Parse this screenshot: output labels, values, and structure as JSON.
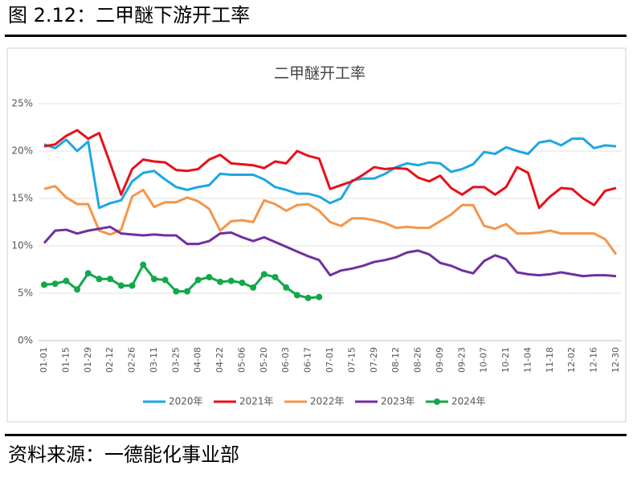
{
  "header": {
    "title": "图 2.12：二甲醚下游开工率"
  },
  "footer": "资料来源：一德能化事业部",
  "chart_data": {
    "type": "line",
    "title": "二甲醚开工率",
    "categories": [
      "01-01",
      null,
      "01-15",
      null,
      "01-29",
      null,
      "02-12",
      null,
      "02-26",
      null,
      "03-11",
      null,
      "03-25",
      null,
      "04-08",
      null,
      "04-22",
      null,
      "05-06",
      null,
      "05-20",
      null,
      "06-03",
      null,
      "06-17",
      null,
      "07-01",
      null,
      "07-15",
      null,
      "07-29",
      null,
      "08-12",
      null,
      "08-26",
      null,
      "09-09",
      null,
      "09-23",
      null,
      "10-07",
      null,
      "10-21",
      null,
      "11-04",
      null,
      "11-18",
      null,
      "12-02",
      null,
      "12-16",
      null,
      "12-30"
    ],
    "ylim": [
      0,
      25
    ],
    "yticks": [
      {
        "value": 0,
        "label": "0%"
      },
      {
        "value": 5,
        "label": "5%"
      },
      {
        "value": 10,
        "label": "10%"
      },
      {
        "value": 15,
        "label": "15%"
      },
      {
        "value": 20,
        "label": "20%"
      },
      {
        "value": 25,
        "label": "25%"
      }
    ],
    "grid": true,
    "legend": "bottom",
    "series": [
      {
        "name": "2020年",
        "color": "#1ea7e1",
        "values": [
          20.7,
          20.3,
          21.2,
          20.0,
          21.0,
          14.0,
          14.5,
          14.8,
          16.8,
          17.7,
          17.9,
          17.0,
          16.2,
          15.9,
          16.2,
          16.4,
          17.6,
          17.5,
          17.5,
          17.5,
          17.0,
          16.2,
          15.9,
          15.5,
          15.5,
          15.2,
          14.5,
          15.0,
          16.9,
          17.1,
          17.1,
          17.6,
          18.3,
          18.7,
          18.5,
          18.8,
          18.7,
          17.8,
          18.1,
          18.6,
          19.9,
          19.7,
          20.4,
          20.0,
          19.7,
          20.9,
          21.1,
          20.6,
          21.3,
          21.3,
          20.3,
          20.6,
          20.5
        ]
      },
      {
        "name": "2021年",
        "color": "#e8101a",
        "values": [
          20.5,
          20.7,
          21.6,
          22.2,
          21.3,
          21.9,
          18.7,
          15.4,
          18.1,
          19.1,
          18.9,
          18.8,
          18.0,
          17.9,
          18.1,
          19.1,
          19.6,
          18.7,
          18.6,
          18.5,
          18.2,
          18.9,
          18.7,
          20.0,
          19.5,
          19.2,
          16.0,
          16.4,
          16.8,
          17.5,
          18.3,
          18.1,
          18.2,
          18.1,
          17.2,
          16.8,
          17.4,
          16.1,
          15.4,
          16.2,
          16.2,
          15.4,
          16.2,
          18.3,
          17.7,
          14.0,
          15.2,
          16.1,
          16.0,
          15.0,
          14.3,
          15.8,
          16.1
        ]
      },
      {
        "name": "2022年",
        "color": "#f5964a",
        "values": [
          16.0,
          16.3,
          15.1,
          14.4,
          14.4,
          11.6,
          11.2,
          11.7,
          15.2,
          15.9,
          14.1,
          14.6,
          14.6,
          15.1,
          14.7,
          13.9,
          11.6,
          12.6,
          12.7,
          12.5,
          14.8,
          14.4,
          13.7,
          14.3,
          14.4,
          13.7,
          12.5,
          12.1,
          12.9,
          12.9,
          12.7,
          12.4,
          11.9,
          12.0,
          11.9,
          11.9,
          12.6,
          13.3,
          14.3,
          14.3,
          12.1,
          11.8,
          12.3,
          11.3,
          11.3,
          11.4,
          11.6,
          11.3,
          11.3,
          11.3,
          11.3,
          10.7,
          9.1
        ]
      },
      {
        "name": "2023年",
        "color": "#7030a0",
        "values": [
          10.3,
          11.6,
          11.7,
          11.3,
          11.6,
          11.8,
          12.0,
          11.3,
          11.2,
          11.1,
          11.2,
          11.1,
          11.1,
          10.2,
          10.2,
          10.5,
          11.3,
          11.4,
          10.9,
          10.5,
          10.9,
          10.4,
          9.9,
          9.4,
          8.9,
          8.5,
          6.9,
          7.4,
          7.6,
          7.9,
          8.3,
          8.5,
          8.8,
          9.3,
          9.5,
          9.1,
          8.2,
          7.9,
          7.4,
          7.1,
          8.4,
          9.0,
          8.6,
          7.2,
          7.0,
          6.9,
          7.0,
          7.2,
          7.0,
          6.8,
          6.9,
          6.9,
          6.8
        ]
      },
      {
        "name": "2024年",
        "color": "#13a84a",
        "markers": true,
        "values": [
          5.9,
          6.0,
          6.3,
          5.4,
          7.1,
          6.5,
          6.5,
          5.8,
          5.8,
          8.0,
          6.5,
          6.4,
          5.2,
          5.2,
          6.4,
          6.7,
          6.2,
          6.3,
          6.1,
          5.6,
          7.0,
          6.7,
          5.6,
          4.8,
          4.5,
          4.6,
          null,
          null,
          null,
          null,
          null,
          null,
          null,
          null,
          null,
          null,
          null,
          null,
          null,
          null,
          null,
          null,
          null,
          null,
          null,
          null,
          null,
          null,
          null,
          null,
          null,
          null,
          null
        ]
      }
    ]
  }
}
